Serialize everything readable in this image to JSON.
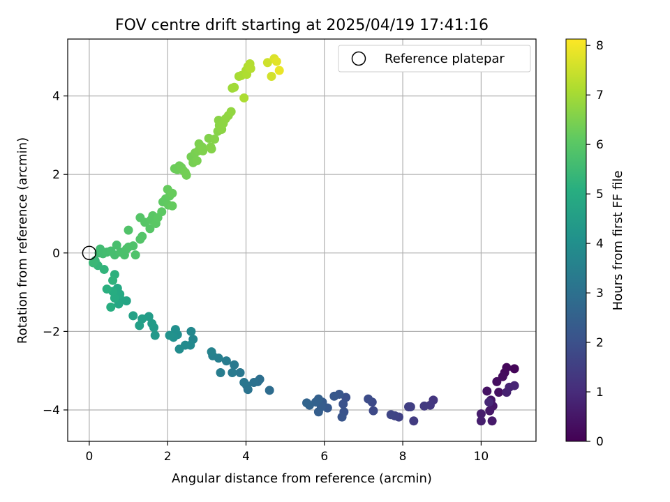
{
  "chart_data": {
    "type": "scatter",
    "title": "FOV centre drift starting at 2025/04/19 17:41:16",
    "xlabel": "Angular distance from reference (arcmin)",
    "ylabel": "Rotation from reference (arcmin)",
    "xlim": [
      -0.55,
      11.4
    ],
    "ylim": [
      -4.8,
      5.45
    ],
    "xticks": [
      0,
      2,
      4,
      6,
      8,
      10
    ],
    "yticks": [
      -4,
      -2,
      0,
      2,
      4
    ],
    "grid": true,
    "legend": {
      "placement": "top-right",
      "entries": [
        "Reference platepar"
      ]
    },
    "reference_point": {
      "x": 0,
      "y": 0
    },
    "colorbar": {
      "label": "Hours from first FF file",
      "min": 0,
      "max": 8.13,
      "ticks": [
        0,
        1,
        2,
        3,
        4,
        5,
        6,
        7,
        8
      ],
      "colormap": "viridis"
    },
    "points": [
      [
        10.85,
        -2.95,
        0.1
      ],
      [
        10.65,
        -2.92,
        0.15
      ],
      [
        10.6,
        -3.05,
        0.2
      ],
      [
        10.55,
        -3.15,
        0.25
      ],
      [
        10.4,
        -3.28,
        0.3
      ],
      [
        10.45,
        -3.55,
        0.35
      ],
      [
        10.15,
        -3.52,
        0.4
      ],
      [
        10.25,
        -3.75,
        0.45
      ],
      [
        10.3,
        -3.9,
        0.5
      ],
      [
        10.22,
        -4.02,
        0.55
      ],
      [
        10.28,
        -4.28,
        0.6
      ],
      [
        10.0,
        -4.1,
        0.65
      ],
      [
        10.0,
        -4.28,
        0.7
      ],
      [
        10.65,
        -3.55,
        0.75
      ],
      [
        10.72,
        -3.42,
        0.8
      ],
      [
        10.85,
        -3.38,
        0.85
      ],
      [
        10.2,
        -3.8,
        0.9
      ],
      [
        8.78,
        -3.75,
        1.3
      ],
      [
        8.7,
        -3.88,
        1.35
      ],
      [
        8.55,
        -3.9,
        1.4
      ],
      [
        8.28,
        -4.28,
        1.45
      ],
      [
        8.15,
        -3.92,
        1.5
      ],
      [
        8.2,
        -3.92,
        1.55
      ],
      [
        7.9,
        -4.18,
        1.6
      ],
      [
        7.8,
        -4.15,
        1.65
      ],
      [
        7.7,
        -4.12,
        1.7
      ],
      [
        7.25,
        -4.02,
        1.8
      ],
      [
        7.22,
        -3.8,
        1.85
      ],
      [
        7.12,
        -3.72,
        1.9
      ],
      [
        6.55,
        -3.68,
        2.0
      ],
      [
        6.48,
        -3.85,
        2.05
      ],
      [
        6.5,
        -4.05,
        2.1
      ],
      [
        6.45,
        -4.18,
        2.15
      ],
      [
        6.38,
        -3.6,
        2.2
      ],
      [
        6.25,
        -3.65,
        2.25
      ],
      [
        6.08,
        -3.95,
        2.3
      ],
      [
        5.95,
        -3.8,
        2.35
      ],
      [
        5.92,
        -3.92,
        2.4
      ],
      [
        5.85,
        -4.05,
        2.45
      ],
      [
        5.85,
        -3.72,
        2.5
      ],
      [
        5.78,
        -3.8,
        2.55
      ],
      [
        5.62,
        -3.88,
        2.6
      ],
      [
        5.55,
        -3.82,
        2.65
      ],
      [
        4.6,
        -3.5,
        2.9
      ],
      [
        4.35,
        -3.22,
        2.95
      ],
      [
        4.3,
        -3.28,
        3.0
      ],
      [
        4.2,
        -3.3,
        3.05
      ],
      [
        4.05,
        -3.48,
        3.1
      ],
      [
        4.02,
        -3.38,
        3.15
      ],
      [
        3.95,
        -3.3,
        3.2
      ],
      [
        3.85,
        -3.05,
        3.25
      ],
      [
        3.7,
        -2.85,
        3.3
      ],
      [
        3.65,
        -3.05,
        3.35
      ],
      [
        3.5,
        -2.75,
        3.4
      ],
      [
        3.35,
        -3.05,
        3.45
      ],
      [
        3.3,
        -2.68,
        3.5
      ],
      [
        3.15,
        -2.62,
        3.55
      ],
      [
        3.12,
        -2.52,
        3.6
      ],
      [
        2.65,
        -2.2,
        3.75
      ],
      [
        2.6,
        -2.0,
        3.8
      ],
      [
        2.58,
        -2.35,
        3.85
      ],
      [
        2.45,
        -2.35,
        3.9
      ],
      [
        2.3,
        -2.45,
        3.95
      ],
      [
        2.25,
        -2.08,
        4.0
      ],
      [
        2.2,
        -1.95,
        4.05
      ],
      [
        2.15,
        -2.15,
        4.1
      ],
      [
        2.05,
        -2.1,
        4.15
      ],
      [
        1.68,
        -2.1,
        4.35
      ],
      [
        1.65,
        -1.9,
        4.4
      ],
      [
        1.6,
        -1.8,
        4.45
      ],
      [
        1.52,
        -1.62,
        4.5
      ],
      [
        1.35,
        -1.68,
        4.55
      ],
      [
        1.28,
        -1.85,
        4.6
      ],
      [
        1.12,
        -1.6,
        4.65
      ],
      [
        0.95,
        -1.22,
        4.75
      ],
      [
        0.82,
        -1.2,
        4.8
      ],
      [
        0.75,
        -1.3,
        4.85
      ],
      [
        0.72,
        -0.9,
        4.9
      ],
      [
        0.78,
        -1.05,
        4.95
      ],
      [
        0.65,
        -1.15,
        5.0
      ],
      [
        0.6,
        -0.98,
        5.05
      ],
      [
        0.55,
        -1.38,
        5.1
      ],
      [
        0.45,
        -0.92,
        5.15
      ],
      [
        0.65,
        -0.55,
        5.2
      ],
      [
        0.6,
        -0.7,
        5.25
      ],
      [
        0.38,
        -0.42,
        5.3
      ],
      [
        0.22,
        -0.32,
        5.35
      ],
      [
        0.15,
        -0.2,
        5.4
      ],
      [
        0.1,
        -0.25,
        5.45
      ],
      [
        0.25,
        0.0,
        5.55
      ],
      [
        0.28,
        0.1,
        5.6
      ],
      [
        0.35,
        -0.02,
        5.62
      ],
      [
        0.45,
        0.02,
        5.65
      ],
      [
        0.55,
        0.05,
        5.68
      ],
      [
        0.65,
        -0.05,
        5.7
      ],
      [
        0.7,
        0.2,
        5.72
      ],
      [
        0.8,
        0.02,
        5.75
      ],
      [
        0.9,
        -0.05,
        5.78
      ],
      [
        0.95,
        0.1,
        5.8
      ],
      [
        1.0,
        0.15,
        5.82
      ],
      [
        1.12,
        0.18,
        5.85
      ],
      [
        1.18,
        -0.05,
        5.87
      ],
      [
        1.0,
        0.58,
        5.88
      ],
      [
        1.3,
        0.35,
        5.92
      ],
      [
        1.35,
        0.42,
        5.94
      ],
      [
        1.3,
        0.9,
        5.96
      ],
      [
        1.42,
        0.78,
        5.98
      ],
      [
        1.55,
        0.62,
        6.0
      ],
      [
        1.58,
        0.85,
        6.02
      ],
      [
        1.62,
        0.95,
        6.04
      ],
      [
        1.7,
        0.75,
        6.06
      ],
      [
        1.75,
        0.9,
        6.08
      ],
      [
        1.85,
        1.05,
        6.1
      ],
      [
        1.88,
        1.3,
        6.12
      ],
      [
        1.95,
        1.38,
        6.14
      ],
      [
        2.02,
        1.22,
        6.16
      ],
      [
        2.05,
        1.45,
        6.18
      ],
      [
        2.12,
        1.2,
        6.2
      ],
      [
        2.0,
        1.62,
        6.22
      ],
      [
        2.12,
        1.52,
        6.24
      ],
      [
        2.18,
        2.15,
        6.28
      ],
      [
        2.25,
        2.12,
        6.3
      ],
      [
        2.3,
        2.22,
        6.32
      ],
      [
        2.35,
        2.18,
        6.34
      ],
      [
        2.4,
        2.1,
        6.36
      ],
      [
        2.48,
        1.98,
        6.38
      ],
      [
        2.45,
        2.05,
        6.4
      ],
      [
        2.6,
        2.45,
        6.42
      ],
      [
        2.65,
        2.3,
        6.44
      ],
      [
        2.7,
        2.55,
        6.46
      ],
      [
        2.75,
        2.35,
        6.48
      ],
      [
        2.78,
        2.6,
        6.5
      ],
      [
        2.8,
        2.78,
        6.52
      ],
      [
        2.88,
        2.7,
        6.54
      ],
      [
        2.9,
        2.6,
        6.56
      ],
      [
        3.05,
        2.92,
        6.58
      ],
      [
        3.1,
        2.7,
        6.6
      ],
      [
        3.12,
        2.65,
        6.62
      ],
      [
        3.2,
        2.9,
        6.64
      ],
      [
        3.28,
        3.1,
        6.66
      ],
      [
        3.3,
        3.38,
        6.68
      ],
      [
        3.32,
        3.25,
        6.7
      ],
      [
        3.38,
        3.15,
        6.72
      ],
      [
        3.42,
        3.3,
        6.74
      ],
      [
        3.48,
        3.42,
        6.76
      ],
      [
        3.55,
        3.5,
        6.78
      ],
      [
        3.62,
        3.6,
        6.8
      ],
      [
        3.65,
        4.2,
        6.95
      ],
      [
        3.7,
        4.22,
        7.0
      ],
      [
        3.82,
        4.5,
        7.05
      ],
      [
        3.88,
        4.52,
        7.1
      ],
      [
        3.95,
        3.95,
        7.12
      ],
      [
        4.0,
        4.65,
        7.15
      ],
      [
        4.02,
        4.55,
        7.18
      ],
      [
        4.05,
        4.75,
        7.2
      ],
      [
        4.1,
        4.82,
        7.22
      ],
      [
        4.12,
        4.7,
        7.25
      ],
      [
        4.55,
        4.85,
        7.55
      ],
      [
        4.65,
        4.5,
        7.6
      ],
      [
        4.72,
        4.95,
        7.7
      ],
      [
        4.78,
        4.88,
        7.8
      ],
      [
        4.85,
        4.65,
        7.9
      ]
    ]
  }
}
